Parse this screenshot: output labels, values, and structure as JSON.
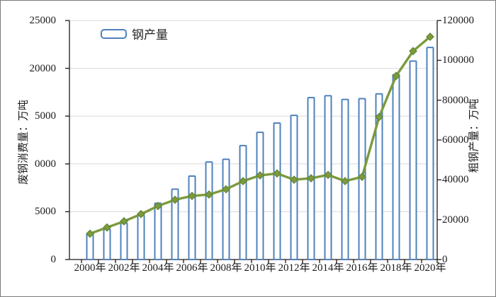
{
  "chart": {
    "legend": {
      "label": "钢产量"
    },
    "left_axis": {
      "title": "废钢消费量：万吨",
      "tick_labels": [
        "25000",
        "20000",
        "5000",
        "0000",
        "5000",
        "0"
      ]
    },
    "right_axis": {
      "title": "粗钢产量：万吨",
      "tick_labels": [
        "120000",
        "100000",
        "80000",
        "60000",
        "40000",
        "20000",
        "0"
      ]
    },
    "x_axis": {
      "tick_labels": [
        "2000年",
        "2002年",
        "2004年",
        "2006年",
        "2008年",
        "2010年",
        "2012年",
        "2014年",
        "2016年",
        "2018年",
        "2020年"
      ]
    },
    "colors": {
      "bar_border": "#4f81bd",
      "bar_fill": "#ffffff",
      "line": "#7a9a3c",
      "marker_edge": "#60802f",
      "gridline": "#d9d9d9",
      "axis": "#1a1a1a",
      "text": "#1a1a1a"
    }
  },
  "chart_data": {
    "type": "combo",
    "categories": [
      "2000年",
      "2001年",
      "2002年",
      "2003年",
      "2004年",
      "2005年",
      "2006年",
      "2007年",
      "2008年",
      "2009年",
      "2010年",
      "2011年",
      "2012年",
      "2013年",
      "2014年",
      "2015年",
      "2016年",
      "2017年",
      "2018年",
      "2019年",
      "2020年"
    ],
    "series": [
      {
        "name": "钢产量",
        "type": "bar",
        "axis": "right",
        "values": [
          12850,
          15160,
          18240,
          22230,
          28290,
          35320,
          41910,
          48930,
          50310,
          57220,
          63870,
          68530,
          72390,
          81310,
          82230,
          80380,
          80760,
          83170,
          92800,
          99630,
          106480
        ]
      },
      {
        "name": "废钢消费量",
        "type": "line",
        "axis": "left",
        "values": [
          2700,
          3350,
          4000,
          4750,
          5600,
          6250,
          6650,
          6800,
          7350,
          8200,
          8800,
          9000,
          8350,
          8500,
          8850,
          8200,
          8650,
          14900,
          19200,
          21800,
          23300
        ]
      }
    ],
    "left_axis": {
      "label": "废钢消费量：万吨",
      "range": [
        0,
        25000
      ],
      "tick_step": 5000
    },
    "right_axis": {
      "label": "粗钢产量：万吨",
      "range": [
        0,
        120000
      ],
      "tick_step": 20000
    },
    "x_tick_labels_shown": "every 2 years",
    "legend_position": "top-left-inside",
    "grid": true
  }
}
